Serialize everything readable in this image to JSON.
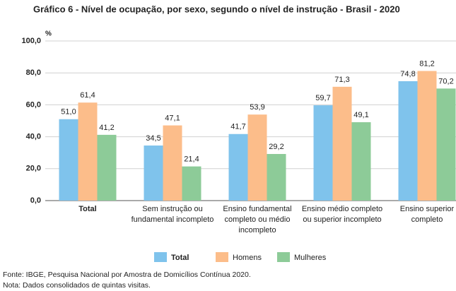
{
  "chart_data": {
    "type": "bar",
    "title": "Gráfico 6 - Nível de ocupação, por sexo, segundo o nível de instrução - Brasil - 2020",
    "y_unit": "%",
    "categories": [
      "Total",
      "Sem instrução ou fundamental incompleto",
      "Ensino fundamental completo ou médio incompleto",
      "Ensino médio completo ou superior incompleto",
      "Ensino superior completo"
    ],
    "series": [
      {
        "name": "Total",
        "color": "#7fc3ec",
        "values": [
          51.0,
          34.5,
          41.7,
          59.7,
          74.8
        ],
        "value_labels": [
          "51,0",
          "34,5",
          "41,7",
          "59,7",
          "74,8"
        ]
      },
      {
        "name": "Homens",
        "color": "#fcbd8a",
        "values": [
          61.4,
          47.1,
          53.9,
          71.3,
          81.2
        ],
        "value_labels": [
          "61,4",
          "47,1",
          "53,9",
          "71,3",
          "81,2"
        ]
      },
      {
        "name": "Mulheres",
        "color": "#8dcb98",
        "values": [
          41.2,
          21.4,
          29.2,
          49.1,
          70.2
        ],
        "value_labels": [
          "41,2",
          "21,4",
          "29,2",
          "49,1",
          "70,2"
        ]
      }
    ],
    "ylim": [
      0,
      100
    ],
    "yticks": [
      {
        "value": 0,
        "label": "0,0"
      },
      {
        "value": 20,
        "label": "20,0"
      },
      {
        "value": 40,
        "label": "40,0"
      },
      {
        "value": 60,
        "label": "60,0"
      },
      {
        "value": 80,
        "label": "80,0"
      },
      {
        "value": 100,
        "label": "100,0"
      }
    ],
    "grid": true,
    "legend": "bottom",
    "source": "Fonte: IBGE, Pesquisa Nacional por Amostra de Domicílios Contínua 2020.",
    "note": "Nota: Dados consolidados de quintas visitas."
  }
}
